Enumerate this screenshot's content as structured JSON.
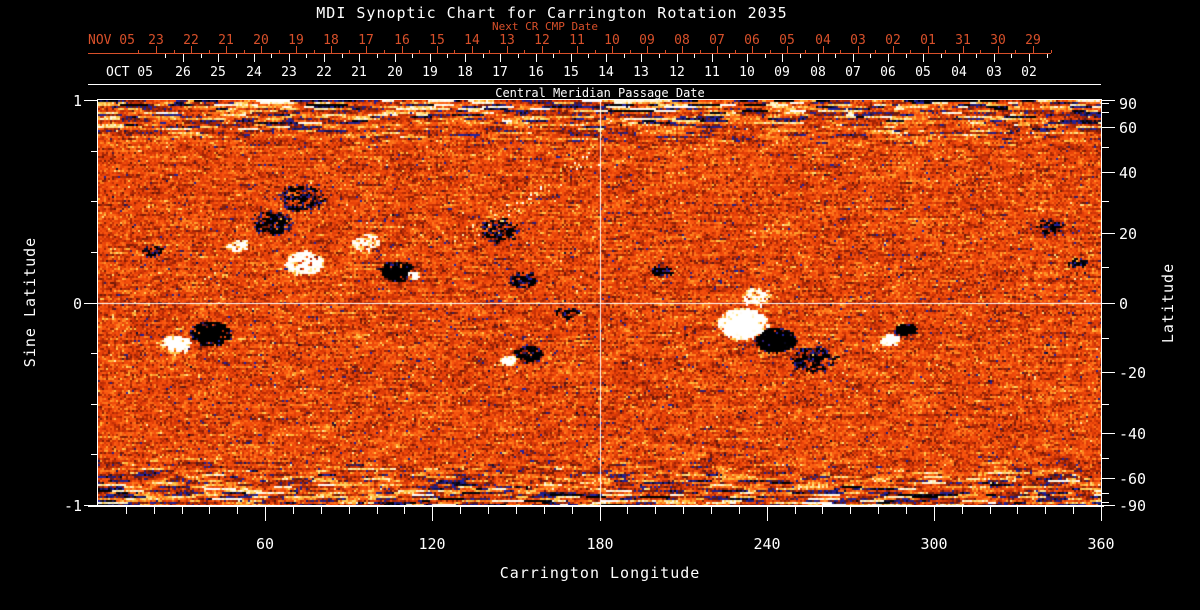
{
  "title": "MDI Synoptic Chart for Carrington Rotation 2035",
  "colors": {
    "background": "#000000",
    "axis_red": "#d8502a",
    "axis_white": "#ffffff",
    "quiet_sun_orange": "#ec4a0a",
    "negative_speckle_blue": "#2226c8",
    "negative_core_black": "#000000",
    "positive_core_white": "#fffbe8",
    "positive_plage_yellow": "#ffd24d"
  },
  "next_cr_axis": {
    "title": "Next CR CMP Date",
    "month_label": "NOV 05",
    "day_labels": [
      "23",
      "22",
      "21",
      "20",
      "19",
      "18",
      "17",
      "16",
      "15",
      "14",
      "13",
      "12",
      "11",
      "10",
      "09",
      "08",
      "07",
      "06",
      "05",
      "04",
      "03",
      "02",
      "01",
      "31",
      "30",
      "29"
    ]
  },
  "cmp_axis": {
    "title": "Central Meridian Passage Date",
    "month_label": "OCT 05",
    "day_labels": [
      "26",
      "25",
      "24",
      "23",
      "22",
      "21",
      "20",
      "19",
      "18",
      "17",
      "16",
      "15",
      "14",
      "13",
      "12",
      "11",
      "10",
      "09",
      "08",
      "07",
      "06",
      "05",
      "04",
      "03",
      "02"
    ]
  },
  "left_axis": {
    "title": "Sine Latitude",
    "tick_labels": [
      "1",
      "0",
      "-1"
    ]
  },
  "right_axis": {
    "title": "Latitude",
    "tick_labels": [
      "90",
      "60",
      "40",
      "20",
      "0",
      "-20",
      "-40",
      "-60",
      "-90"
    ]
  },
  "bottom_axis": {
    "title": "Carrington Longitude",
    "tick_labels": [
      "60",
      "120",
      "180",
      "240",
      "300",
      "360"
    ]
  },
  "chart_data": {
    "type": "heatmap",
    "title": "MDI Synoptic Chart for Carrington Rotation 2035",
    "xlabel": "Carrington Longitude",
    "ylabel_left": "Sine Latitude",
    "ylabel_right": "Latitude",
    "x_range": [
      0,
      360
    ],
    "y_range_sine_latitude": [
      -1,
      1
    ],
    "x_major_ticks": [
      60,
      120,
      180,
      240,
      300,
      360
    ],
    "x_minor_tick_step": 10,
    "left_major_ticks": [
      1,
      0,
      -1
    ],
    "left_minor_ticks": [
      0.75,
      0.5,
      0.25,
      -0.25,
      -0.5,
      -0.75
    ],
    "right_major_ticks": [
      90,
      60,
      40,
      20,
      0,
      -20,
      -40,
      -60,
      -90
    ],
    "right_minor_ticks": [
      80,
      70,
      50,
      30,
      10,
      -10,
      -30,
      -50,
      -70,
      -80
    ],
    "reference_lines": {
      "horizontal_sine_latitude": 0,
      "vertical_longitude": 180
    },
    "legend": "none",
    "grid": "off",
    "colormap": "magnetogram on orange quiet-sun noise: strong negative field = black with blue fringe, weak negative = blue/dark-red speckles, strong positive = white, weak positive = yellow",
    "polar_texture": "horizontal dark/light streaks near top (north) and bottom (south) edges",
    "active_regions": [
      {
        "lon": 40,
        "sine_lat": -0.15,
        "radius_px": 16,
        "polarity": -1,
        "density": 1.6,
        "core": true
      },
      {
        "lon": 27.5,
        "sine_lat": -0.2,
        "radius_px": 11,
        "polarity": 1,
        "density": 1.5,
        "core": true
      },
      {
        "lon": 74,
        "sine_lat": 0.2,
        "radius_px": 15,
        "polarity": 1,
        "density": 1.2,
        "core": false
      },
      {
        "lon": 62,
        "sine_lat": 0.4,
        "radius_px": 16,
        "polarity": -1,
        "density": 0.7,
        "core": false
      },
      {
        "lon": 50,
        "sine_lat": 0.28,
        "radius_px": 9,
        "polarity": 1,
        "density": 0.8,
        "core": false
      },
      {
        "lon": 107,
        "sine_lat": 0.16,
        "radius_px": 13,
        "polarity": -1,
        "density": 1.8,
        "core": true
      },
      {
        "lon": 113,
        "sine_lat": 0.14,
        "radius_px": 5,
        "polarity": 1,
        "density": 2.2,
        "core": true
      },
      {
        "lon": 96,
        "sine_lat": 0.3,
        "radius_px": 11,
        "polarity": 1,
        "density": 0.7,
        "core": false
      },
      {
        "lon": 73,
        "sine_lat": 0.52,
        "radius_px": 18,
        "polarity": -1,
        "density": 0.5,
        "core": false
      },
      {
        "lon": 144,
        "sine_lat": 0.36,
        "radius_px": 16,
        "polarity": -1,
        "density": 0.55,
        "core": false
      },
      {
        "lon": 152,
        "sine_lat": 0.12,
        "radius_px": 11,
        "polarity": -1,
        "density": 0.6,
        "core": false
      },
      {
        "lon": 154,
        "sine_lat": -0.25,
        "radius_px": 11,
        "polarity": -1,
        "density": 1.1,
        "core": false
      },
      {
        "lon": 147,
        "sine_lat": -0.28,
        "radius_px": 6,
        "polarity": 1,
        "density": 2.0,
        "core": true
      },
      {
        "lon": 168,
        "sine_lat": -0.05,
        "radius_px": 10,
        "polarity": -1,
        "density": 0.4,
        "core": false
      },
      {
        "lon": 202,
        "sine_lat": 0.16,
        "radius_px": 8,
        "polarity": -1,
        "density": 0.8,
        "core": false
      },
      {
        "lon": 231,
        "sine_lat": -0.1,
        "radius_px": 20,
        "polarity": 1,
        "density": 2.0,
        "core": true
      },
      {
        "lon": 243,
        "sine_lat": -0.18,
        "radius_px": 16,
        "polarity": -1,
        "density": 2.0,
        "core": true
      },
      {
        "lon": 257,
        "sine_lat": -0.28,
        "radius_px": 18,
        "polarity": -1,
        "density": 0.6,
        "core": false
      },
      {
        "lon": 236,
        "sine_lat": 0.03,
        "radius_px": 12,
        "polarity": 1,
        "density": 0.7,
        "core": false
      },
      {
        "lon": 284,
        "sine_lat": -0.18,
        "radius_px": 7,
        "polarity": 1,
        "density": 2.4,
        "core": true
      },
      {
        "lon": 289.5,
        "sine_lat": -0.13,
        "radius_px": 8,
        "polarity": -1,
        "density": 2.2,
        "core": true
      },
      {
        "lon": 341,
        "sine_lat": 0.38,
        "radius_px": 11,
        "polarity": -1,
        "density": 0.5,
        "core": false
      },
      {
        "lon": 19,
        "sine_lat": 0.26,
        "radius_px": 8,
        "polarity": -1,
        "density": 0.6,
        "core": false
      },
      {
        "lon": 351,
        "sine_lat": 0.2,
        "radius_px": 7,
        "polarity": -1,
        "density": 0.6,
        "core": false
      }
    ],
    "bright_streak": {
      "from": {
        "lon": 134,
        "sine_lat": 0.36
      },
      "to": {
        "lon": 178,
        "sine_lat": 0.74
      }
    }
  }
}
